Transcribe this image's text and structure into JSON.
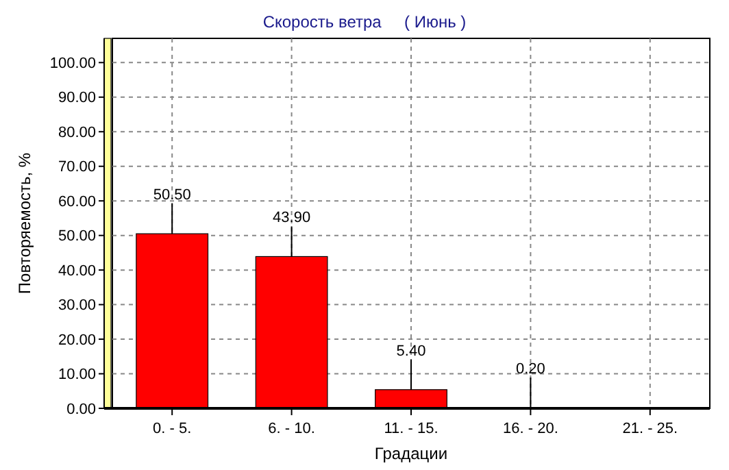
{
  "chart_data": {
    "type": "bar",
    "title": "Скорость ветра     ( Июнь )",
    "xlabel": "Градации",
    "ylabel": "Повторяемость, %",
    "categories": [
      "0. - 5.",
      "6. - 10.",
      "11. - 15.",
      "16. - 20.",
      "21. - 25."
    ],
    "values": [
      50.5,
      43.9,
      5.4,
      0.2,
      0
    ],
    "color": "#ff0000",
    "value_labels": [
      "50.50",
      "43.90",
      "5.40",
      "0.20",
      null
    ],
    "ylim": [
      0,
      107
    ],
    "yticks": [
      {
        "value": 0,
        "label": "0.00"
      },
      {
        "value": 10,
        "label": "10.00"
      },
      {
        "value": 20,
        "label": "20.00"
      },
      {
        "value": 30,
        "label": "30.00"
      },
      {
        "value": 40,
        "label": "40.00"
      },
      {
        "value": 50,
        "label": "50.00"
      },
      {
        "value": 60,
        "label": "60.00"
      },
      {
        "value": 70,
        "label": "70.00"
      },
      {
        "value": 80,
        "label": "80.00"
      },
      {
        "value": 90,
        "label": "90.00"
      },
      {
        "value": 100,
        "label": "100.00"
      }
    ],
    "grid": true
  }
}
